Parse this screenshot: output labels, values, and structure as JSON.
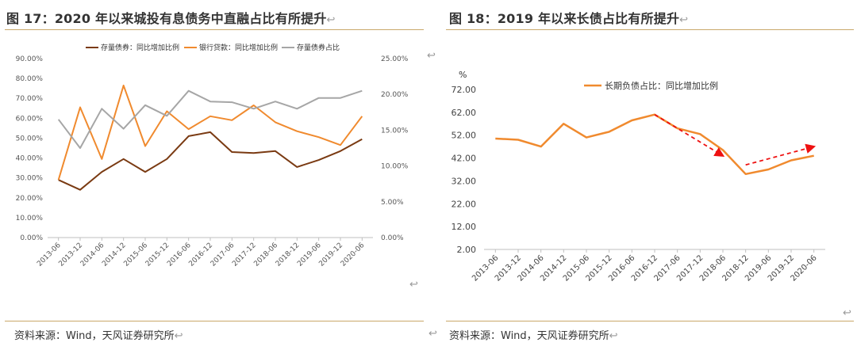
{
  "left": {
    "title": "图 17：2020 年以来城投有息债务中直融占比有所提升",
    "return_mark": "↩",
    "source": "资料来源：Wind，天风证券研究所",
    "colors": {
      "s1": "#7a3a12",
      "s2": "#f08a2e",
      "s3": "#a6a6a6"
    }
  },
  "right": {
    "title": "图 18：2019 年以来长债占比有所提升",
    "return_mark": "↩",
    "source": "资料来源：Wind，天风证券研究所",
    "colors": {
      "s1": "#f08a2e",
      "arrow": "#ee1111"
    }
  },
  "chart_data": [
    {
      "type": "line",
      "title": "图 17：2020 年以来城投有息债务中直融占比有所提升",
      "categories": [
        "2013-06",
        "2013-12",
        "2014-06",
        "2014-12",
        "2015-06",
        "2015-12",
        "2016-06",
        "2016-12",
        "2017-06",
        "2017-12",
        "2018-06",
        "2018-12",
        "2019-06",
        "2019-12",
        "2020-06"
      ],
      "series": [
        {
          "name": "存量债券：同比增加比例",
          "axis": "left",
          "values": [
            29,
            24,
            33,
            39.5,
            33,
            39.5,
            51,
            53,
            43,
            42.5,
            43.5,
            35.5,
            39,
            43.5,
            49.5
          ]
        },
        {
          "name": "银行贷款：同比增加比例",
          "axis": "left",
          "values": [
            29,
            65.5,
            39.5,
            76.5,
            46,
            63.5,
            54.5,
            61,
            59,
            66.5,
            58,
            53.5,
            50.5,
            46.5,
            61
          ]
        },
        {
          "name": "存量债券占比",
          "axis": "right",
          "values": [
            16.5,
            12.5,
            18,
            15.2,
            18.5,
            17,
            20.5,
            19,
            18.9,
            18,
            19,
            18,
            19.5,
            19.5,
            20.5
          ]
        }
      ],
      "yticks_left": [
        "0.00%",
        "10.00%",
        "20.00%",
        "30.00%",
        "40.00%",
        "50.00%",
        "60.00%",
        "70.00%",
        "80.00%",
        "90.00%"
      ],
      "yticks_right": [
        "0.00%",
        "5.00%",
        "10.00%",
        "15.00%",
        "20.00%",
        "25.00%"
      ],
      "ylim_left": [
        0,
        90
      ],
      "ylim_right": [
        0,
        25
      ],
      "legend": "top"
    },
    {
      "type": "line",
      "title": "图 18：2019 年以来长债占比有所提升",
      "ylabel": "%",
      "categories": [
        "2013-06",
        "2013-12",
        "2014-06",
        "2014-12",
        "2015-06",
        "2015-12",
        "2016-06",
        "2016-12",
        "2017-06",
        "2017-12",
        "2018-06",
        "2018-12",
        "2019-06",
        "2019-12",
        "2020-06"
      ],
      "series": [
        {
          "name": "长期负债占比：同比增加比例",
          "values": [
            50.5,
            50,
            47,
            57,
            51,
            53.5,
            58.5,
            61,
            55,
            52.5,
            45.5,
            35,
            37,
            41,
            43
          ]
        }
      ],
      "yticks": [
        "2.00",
        "12.00",
        "22.00",
        "32.00",
        "42.00",
        "52.00",
        "62.00",
        "72.00"
      ],
      "ylim": [
        2,
        72
      ],
      "legend": "top-right",
      "annotations": [
        {
          "type": "arrow",
          "from": [
            "2016-12",
            61
          ],
          "to": [
            "2018-06",
            43
          ]
        },
        {
          "type": "arrow",
          "from": [
            "2018-12",
            39
          ],
          "to": [
            "2020-06",
            47
          ]
        }
      ]
    }
  ]
}
